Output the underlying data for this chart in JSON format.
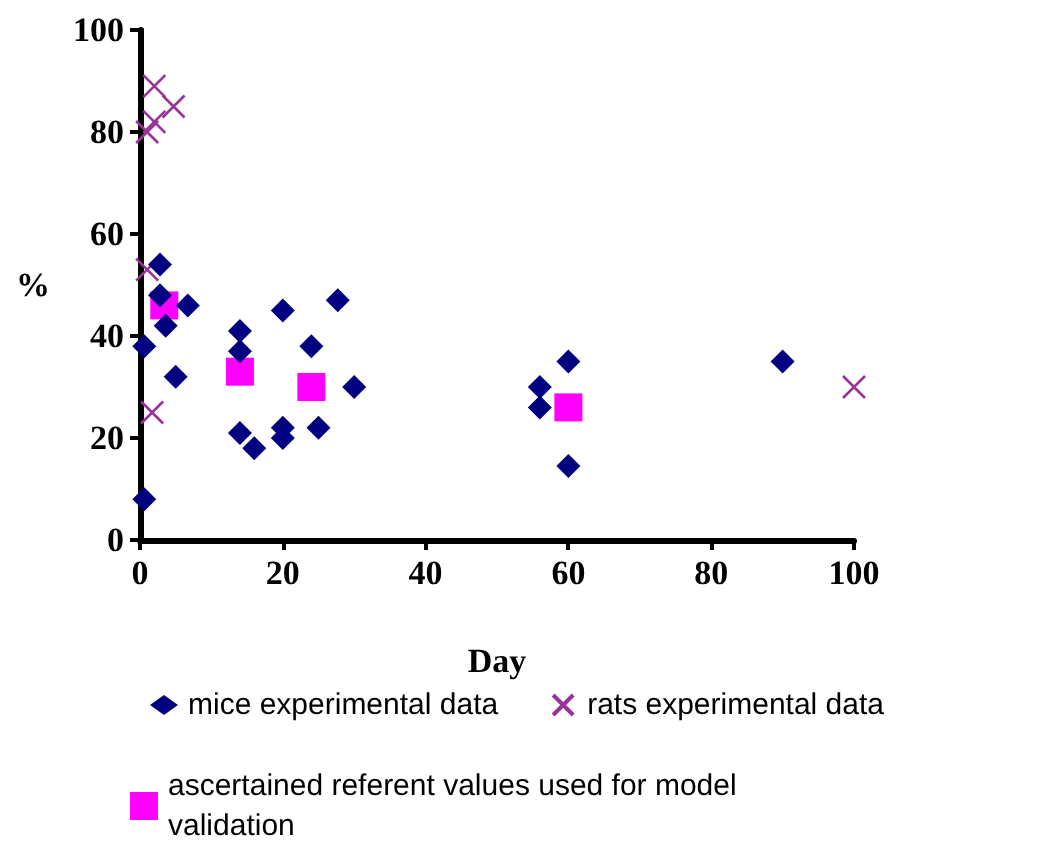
{
  "chart_data": {
    "type": "scatter",
    "xlabel": "Day",
    "ylabel": "%",
    "xlim": [
      0,
      100
    ],
    "xticks": [
      0,
      20,
      40,
      60,
      80,
      100
    ],
    "ylim": [
      0,
      100
    ],
    "yticks": [
      0,
      20,
      40,
      60,
      80,
      100
    ],
    "grid": false,
    "legend": "bottom",
    "series": [
      {
        "name": "mice experimental data",
        "color": "#000080",
        "marker": "diamond",
        "x": [
          0.6,
          0.6,
          2.8,
          2.8,
          3.6,
          6.7,
          5,
          14,
          14,
          14,
          16,
          20,
          20,
          20,
          24,
          25,
          27.7,
          30,
          56,
          56,
          60,
          60,
          90
        ],
        "values": [
          8,
          38,
          54,
          48,
          42,
          46,
          32,
          41,
          37,
          21,
          18,
          45,
          22,
          20,
          38,
          22,
          47,
          30,
          30,
          26,
          35,
          14.5,
          35
        ]
      },
      {
        "name": "rats experimental data",
        "color": "#993399",
        "marker": "cross",
        "x": [
          2,
          2,
          1,
          4.7,
          1,
          1.7,
          100
        ],
        "values": [
          89,
          82,
          80,
          85,
          53,
          25,
          30
        ]
      },
      {
        "name": "ascertained referent values used for model validation",
        "color": "#ff00ff",
        "marker": "square",
        "x": [
          3.4,
          14,
          24,
          60
        ],
        "values": [
          46,
          33,
          30,
          26
        ]
      }
    ]
  }
}
